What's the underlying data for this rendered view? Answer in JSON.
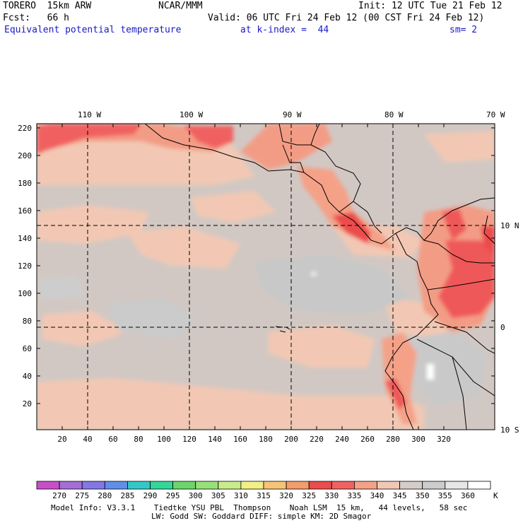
{
  "header": {
    "model": "TORERO  15km ARW",
    "org": "NCAR/MMM",
    "init": "Init: 12 UTC Tue 21 Feb 12",
    "fcst": "Fcst:   66 h",
    "valid": "Valid: 06 UTC Fri 24 Feb 12 (00 CST Fri 24 Feb 12)",
    "field": "Equivalent potential temperature",
    "level": "at k-index =  44",
    "smooth": "sm= 2"
  },
  "map": {
    "lon_labels": [
      "110 W",
      "100 W",
      "90 W",
      "80 W",
      "70 W"
    ],
    "lat_labels": [
      "10 N",
      "0",
      "10 S"
    ],
    "x_ticks": [
      "20",
      "40",
      "60",
      "80",
      "100",
      "120",
      "140",
      "160",
      "180",
      "200",
      "220",
      "240",
      "260",
      "280",
      "300",
      "320"
    ],
    "y_ticks": [
      "220",
      "200",
      "180",
      "160",
      "140",
      "120",
      "100",
      "80",
      "60",
      "40",
      "20"
    ]
  },
  "colorbar": {
    "labels": [
      "270",
      "275",
      "280",
      "285",
      "290",
      "295",
      "300",
      "305",
      "310",
      "315",
      "320",
      "325",
      "330",
      "335",
      "340",
      "345",
      "350",
      "355",
      "360"
    ],
    "unit": "K",
    "colors": [
      "#c84fc8",
      "#a46ed7",
      "#8377e6",
      "#5f8fe8",
      "#35c7c7",
      "#33d79a",
      "#6bd66b",
      "#98e078",
      "#c8ec8c",
      "#f1ef86",
      "#f6c474",
      "#f39c6c",
      "#ec4c4c",
      "#f06262",
      "#f4a188",
      "#f2c8b4",
      "#d6cdca",
      "#cccccc",
      "#e6e6e6",
      "#ffffff"
    ]
  },
  "footer": {
    "line1": "Model Info: V3.3.1    Tiedtke YSU PBL  Thompson    Noah LSM  15 km,   44 levels,   58 sec",
    "line2": "LW: Godd SW: Goddard DIFF: simple KM: 2D Smagor"
  }
}
